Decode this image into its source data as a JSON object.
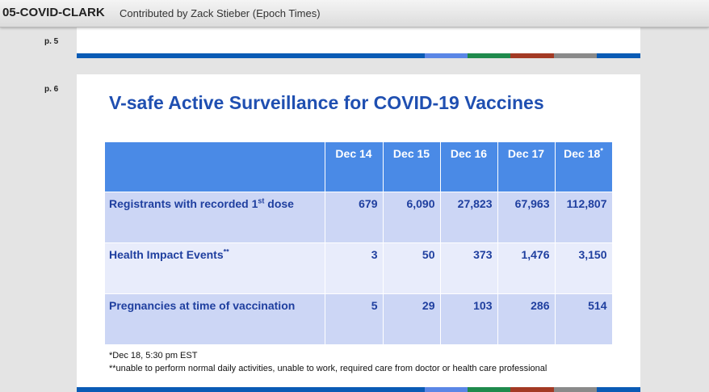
{
  "header": {
    "title": "05-COVID-CLARK",
    "contributor": "Contributed by Zack Stieber (Epoch Times)"
  },
  "pages": {
    "p5_label": "p. 5",
    "p6_label": "p. 6"
  },
  "stripe_colors": {
    "main": "#0a5bb5",
    "light_blue": "#5a86e6",
    "green": "#1f8a4c",
    "red": "#a33a24",
    "gray": "#8a8a8a"
  },
  "slide": {
    "title": "V-safe Active Surveillance for COVID-19 Vaccines",
    "table": {
      "headers": [
        "",
        "Dec 14",
        "Dec 15",
        "Dec 16",
        "Dec 17",
        "Dec 18"
      ],
      "last_header_mark": "*",
      "rows": [
        {
          "label_pre": "Registrants with recorded 1",
          "label_sup": "st",
          "label_post": " dose",
          "values": [
            "679",
            "6,090",
            "27,823",
            "67,963",
            "112,807"
          ]
        },
        {
          "label_pre": "Health Impact Events",
          "label_sup": "**",
          "label_post": "",
          "values": [
            "3",
            "50",
            "373",
            "1,476",
            "3,150"
          ]
        },
        {
          "label_pre": "Pregnancies at time of vaccination",
          "label_sup": "",
          "label_post": "",
          "values": [
            "5",
            "29",
            "103",
            "286",
            "514"
          ]
        }
      ]
    },
    "footnotes": [
      "*Dec 18, 5:30 pm EST",
      "**unable to perform normal daily activities, unable to work, required care from doctor or health care professional"
    ]
  }
}
